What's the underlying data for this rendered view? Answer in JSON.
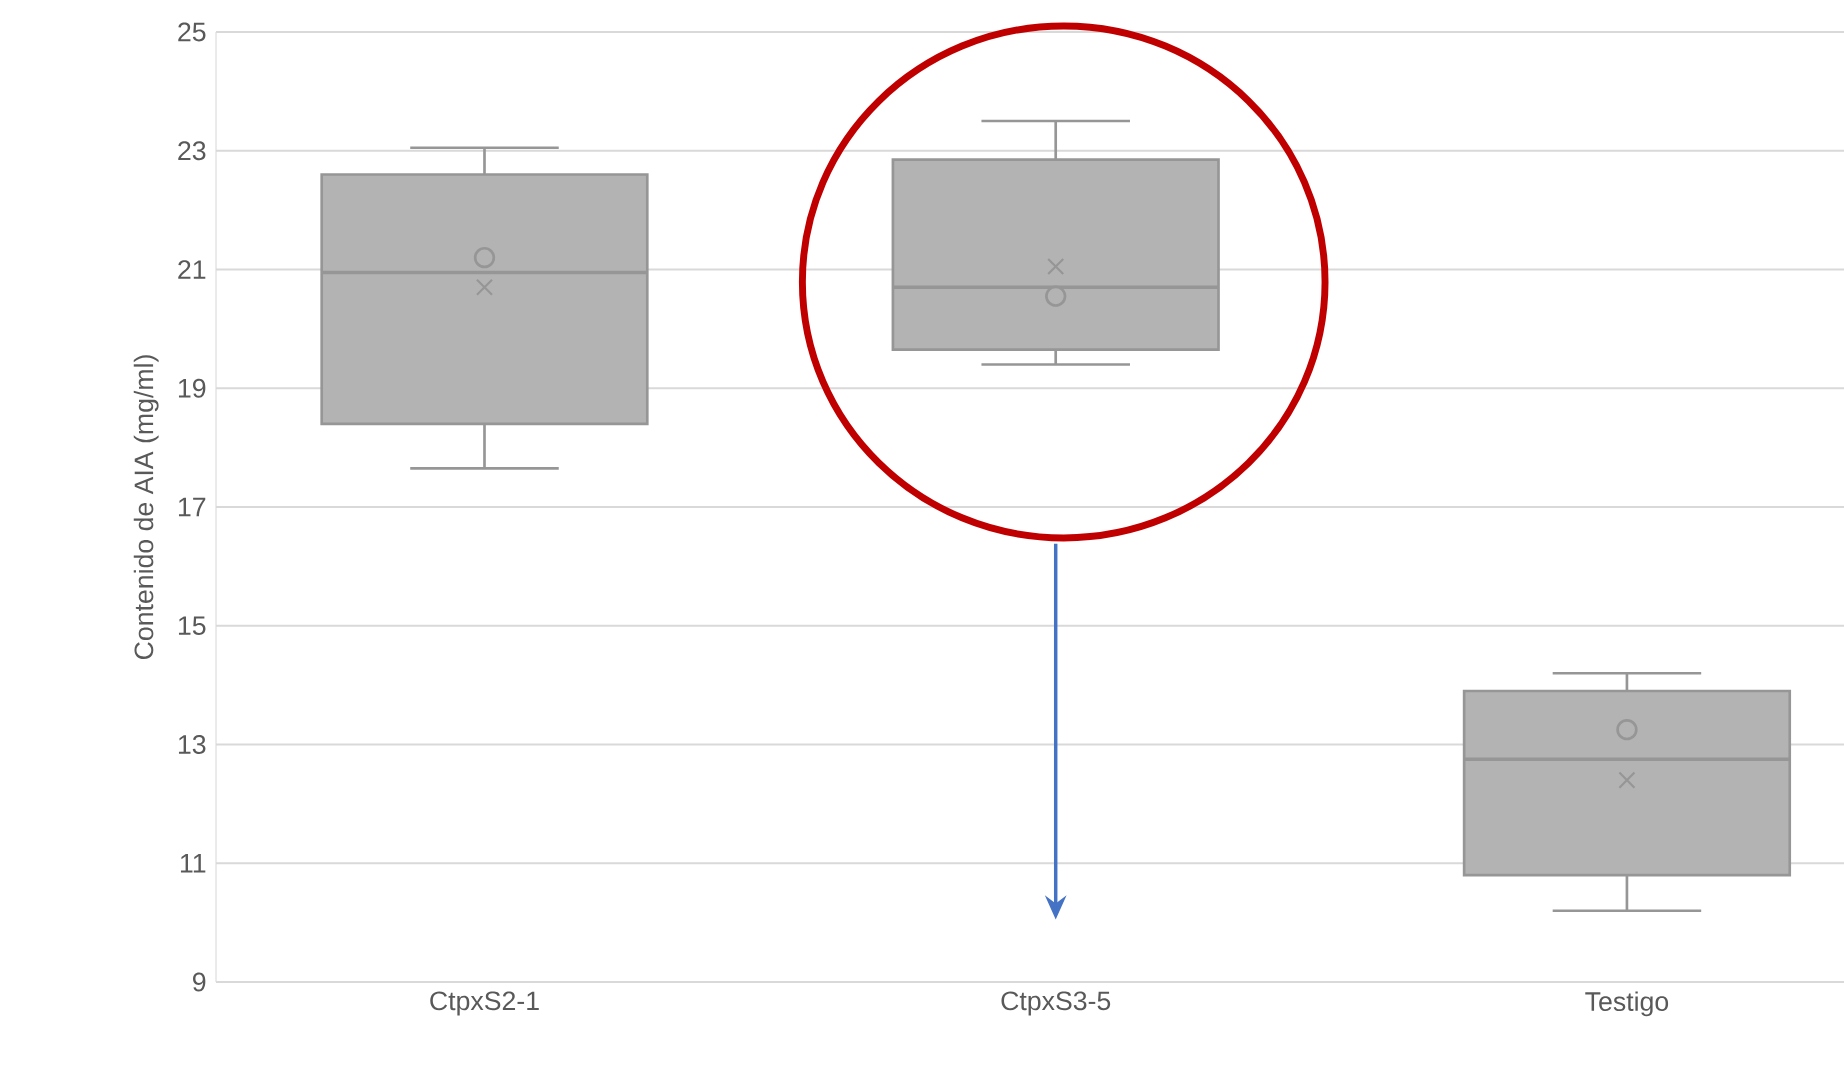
{
  "chart_data": {
    "type": "box",
    "ylabel": "Contenido de  AIA (mg/ml)",
    "categories": [
      "CtpxS2-1",
      "CtpxS3-5",
      "Testigo"
    ],
    "color": "#b3b3b3",
    "boxes": [
      {
        "low": 17.65,
        "q1": 18.4,
        "median": 20.95,
        "q3": 22.6,
        "high": 23.05,
        "mean": 20.7
      },
      {
        "low": 19.4,
        "q1": 19.65,
        "median": 20.7,
        "q3": 22.85,
        "high": 23.5,
        "mean": 21.05
      },
      {
        "low": 10.2,
        "q1": 10.8,
        "median": 12.75,
        "q3": 13.9,
        "high": 14.2,
        "mean": 12.4
      }
    ],
    "series": [
      {
        "type": "scatter",
        "x": [
          "CtpxS2-1",
          "CtpxS3-5",
          "Testigo"
        ],
        "values": [
          21.2,
          20.55,
          13.25
        ],
        "color": "#969696",
        "marker": "circle"
      }
    ],
    "ylim": [
      9,
      25
    ],
    "yticks": [
      9,
      11,
      13,
      15,
      17,
      19,
      21,
      23,
      25
    ],
    "grid": "y"
  }
}
